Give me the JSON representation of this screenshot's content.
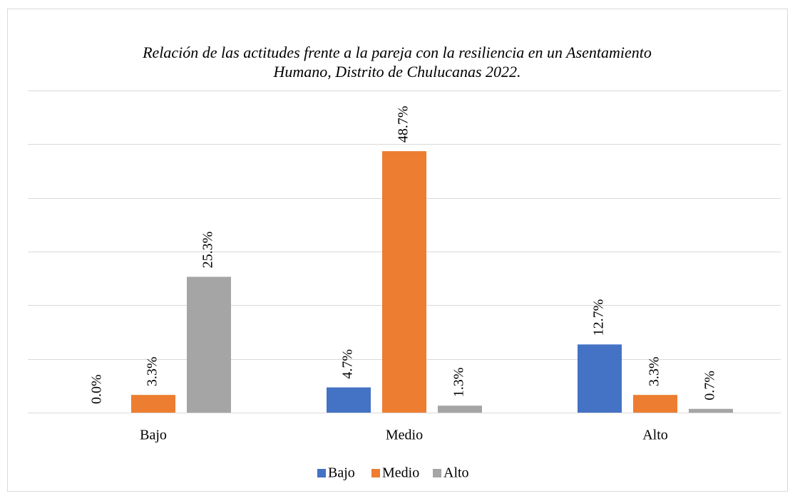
{
  "chart_data": {
    "type": "bar",
    "title": "Relación de las actitudes frente a la pareja con la resiliencia en un Asentamiento Humano, Distrito de Chulucanas 2022.",
    "categories": [
      "Bajo",
      "Medio",
      "Alto"
    ],
    "series": [
      {
        "name": "Bajo",
        "color": "#4472c4",
        "values": [
          0,
          4.7,
          12.7
        ],
        "value_labels": [
          "0.0%",
          "4.7%",
          "12.7%"
        ]
      },
      {
        "name": "Medio",
        "color": "#ed7d31",
        "values": [
          3.3,
          48.7,
          3.3
        ],
        "value_labels": [
          "3.3%",
          "48.7%",
          "3.3%"
        ]
      },
      {
        "name": "Alto",
        "color": "#a5a5a5",
        "values": [
          25.3,
          1.3,
          0.7
        ],
        "value_labels": [
          "25.3%",
          "1.3%",
          "0.7%"
        ]
      }
    ],
    "ylim": [
      0,
      60
    ],
    "yticks": [
      0,
      10,
      20,
      30,
      40,
      50,
      60
    ],
    "grid": true,
    "legend": "bottom"
  }
}
